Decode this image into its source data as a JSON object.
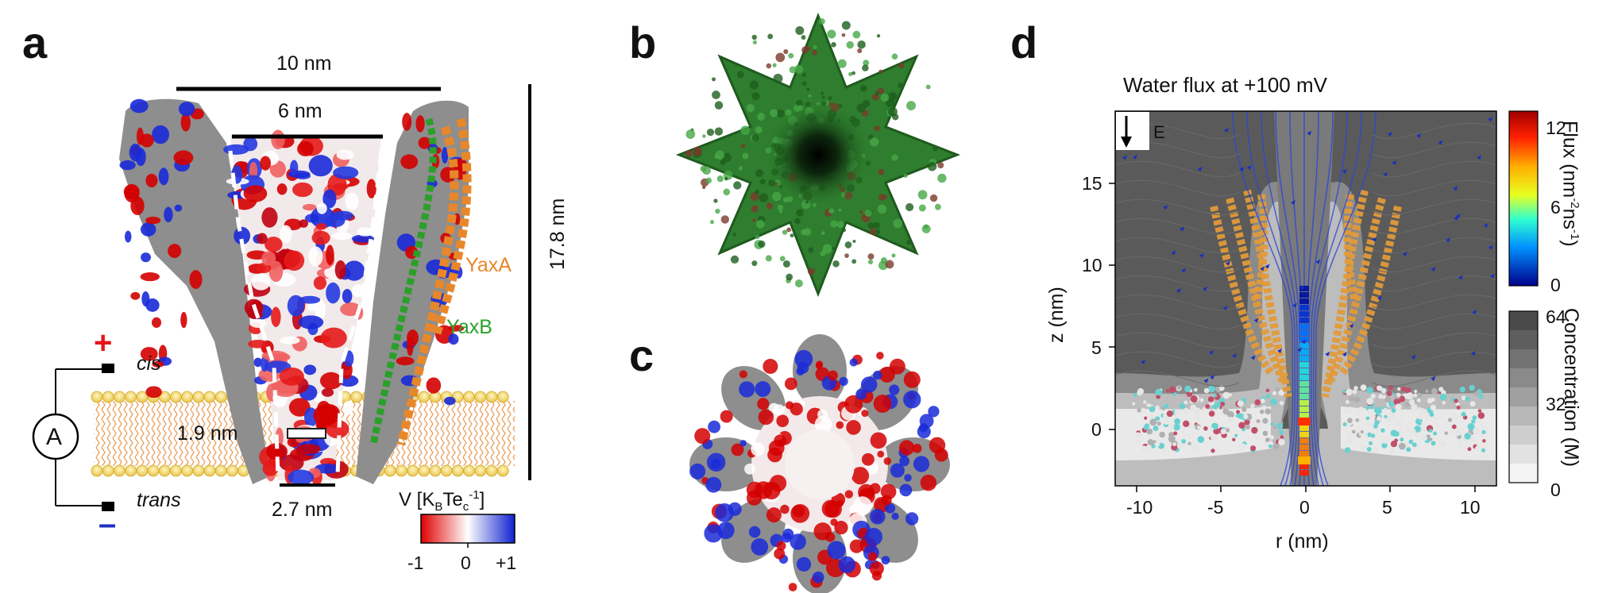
{
  "panels": {
    "a": "a",
    "b": "b",
    "c": "c",
    "d": "d"
  },
  "panel_a": {
    "width_top": "10 nm",
    "width_inner": "6 nm",
    "height": "17.8 nm",
    "constriction": "1.9 nm",
    "bottom_width": "2.7 nm",
    "protein_a": "YaxA",
    "protein_b": "YaxB",
    "cis": "cis",
    "trans": "trans",
    "plus_sign": "+",
    "minus_sign": "–",
    "ammeter": "A",
    "colorbar_title": "V [K",
    "colorbar_title_sub1": "B",
    "colorbar_title_mid": "Te",
    "colorbar_title_sub2": "c",
    "colorbar_title_sup": "-1",
    "colorbar_title_end": "]",
    "colorbar_ticks": [
      "-1",
      "0",
      "+1"
    ],
    "colors": {
      "plus": "#e8141c",
      "minus": "#2030c0",
      "yaxa": "#e8872a",
      "yaxb": "#2aa02a"
    }
  },
  "panel_d": {
    "title": "Water flux at +100 mV",
    "field_label": "E",
    "xlabel": "r (nm)",
    "ylabel": "z (nm)",
    "xticks": [
      "-10",
      "-5",
      "0",
      "5",
      "10"
    ],
    "yticks": [
      "15",
      "10",
      "5",
      "0"
    ],
    "flux_label_main": "Flux (nm",
    "flux_label_sup1": "-2",
    "flux_label_mid": "ns",
    "flux_label_sup2": "-1",
    "flux_label_end": ")",
    "flux_ticks": [
      "12",
      "6",
      "0"
    ],
    "conc_label": "Concentration (M)",
    "conc_ticks": [
      "64",
      "32",
      "0"
    ]
  },
  "chart_data": {
    "type": "heatmap",
    "title": "Water flux at +100 mV",
    "xlabel": "r (nm)",
    "ylabel": "z (nm)",
    "xlim": [
      -12,
      12
    ],
    "ylim": [
      -3.5,
      19
    ],
    "xticks": [
      -10,
      -5,
      0,
      5,
      10
    ],
    "yticks": [
      0,
      5,
      10,
      15
    ],
    "colorbars": [
      {
        "label": "Flux (nm-2ns-1)",
        "range": [
          0,
          13
        ],
        "ticks": [
          0,
          6,
          12
        ],
        "colormap": "jet"
      },
      {
        "label": "Concentration (M)",
        "range": [
          0,
          64
        ],
        "ticks": [
          0,
          32,
          64
        ],
        "colormap": "greys"
      }
    ]
  }
}
